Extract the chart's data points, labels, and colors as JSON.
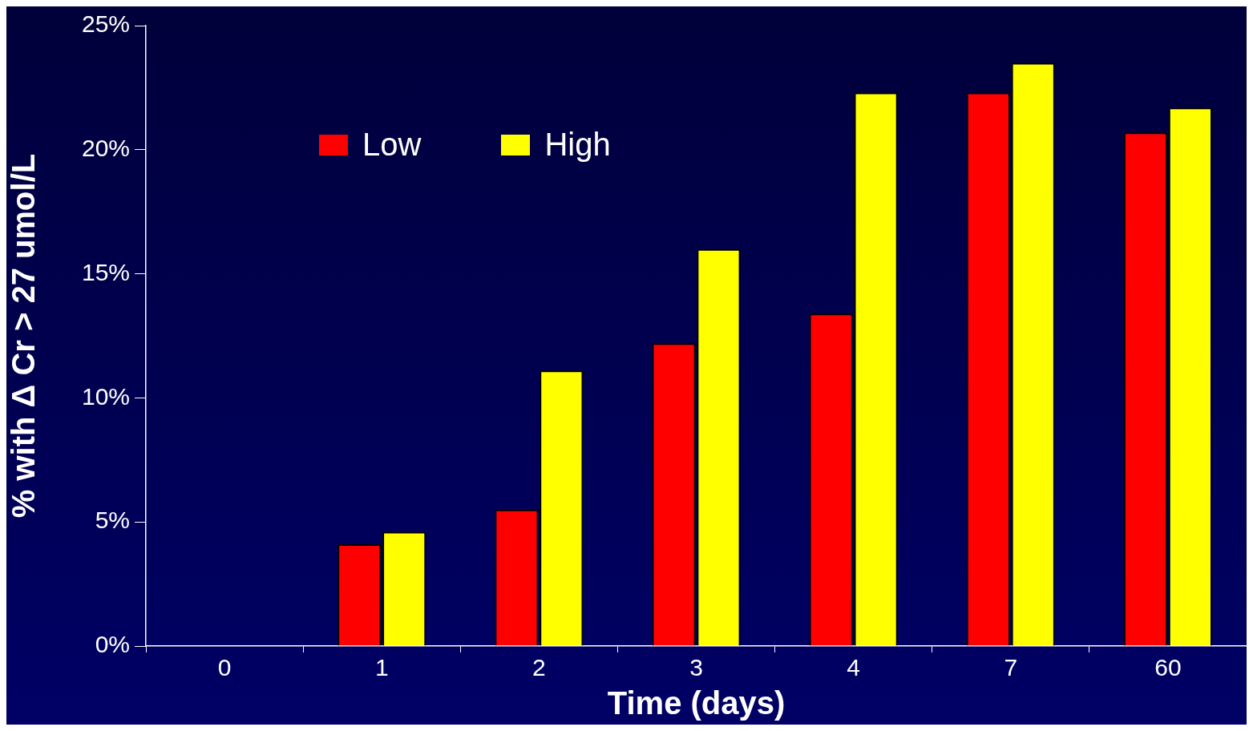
{
  "chart_data": {
    "type": "bar",
    "xlabel": "Time (days)",
    "ylabel": "% with Δ Cr > 27 umol/L",
    "categories": [
      "0",
      "1",
      "2",
      "3",
      "4",
      "7",
      "60"
    ],
    "series": [
      {
        "name": "Low",
        "color": "#ff0000",
        "values": [
          0,
          4.1,
          5.5,
          12.2,
          13.4,
          22.3,
          20.7
        ]
      },
      {
        "name": "High",
        "color": "#ffff00",
        "values": [
          0,
          4.6,
          11.1,
          16.0,
          22.3,
          23.5,
          21.7
        ]
      }
    ],
    "ylim": [
      0,
      25
    ],
    "yticks": [
      {
        "value": 0,
        "label": "0%"
      },
      {
        "value": 5,
        "label": "5%"
      },
      {
        "value": 10,
        "label": "10%"
      },
      {
        "value": 15,
        "label": "15%"
      },
      {
        "value": 20,
        "label": "20%"
      },
      {
        "value": 25,
        "label": "25%"
      }
    ],
    "grid": false,
    "legend": "top left"
  }
}
